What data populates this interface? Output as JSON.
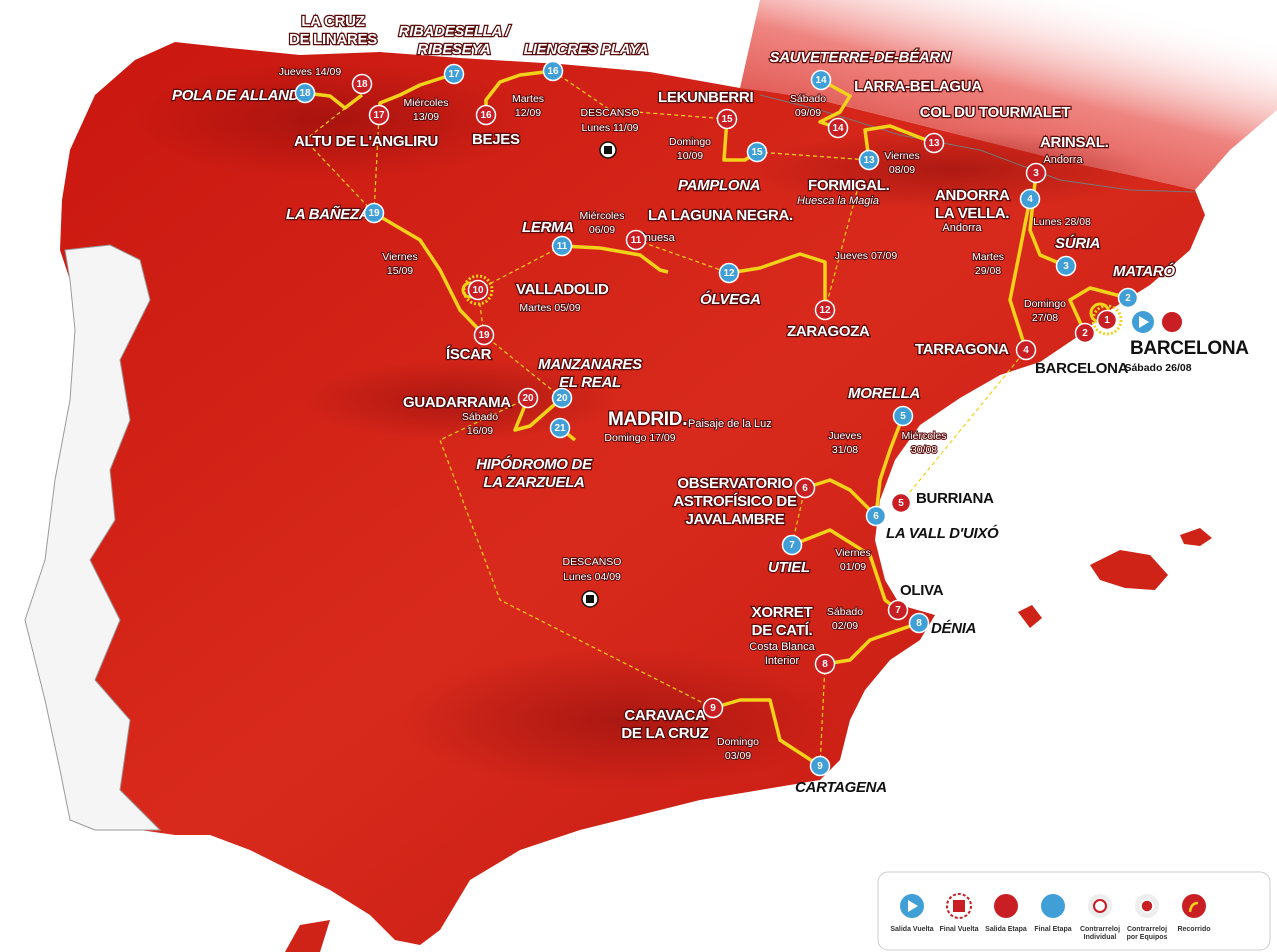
{
  "places": [
    {
      "lines": [
        "LA CRUZ",
        "DE LINARES"
      ]
    },
    {
      "lines": [
        "RIBADESELLA /",
        "RIBESEYA"
      ]
    },
    {
      "lines": [
        "LIENCRES PLAYA"
      ]
    },
    {
      "lines": [
        "SAUVETERRE-DE-BÉARN"
      ]
    },
    {
      "lines": [
        "LARRA-BELAGUA"
      ]
    },
    {
      "lines": [
        "COL DU TOURMALET"
      ]
    },
    {
      "lines": [
        "POLA DE ALLANDE"
      ]
    },
    {
      "lines": [
        "LEKUNBERRI"
      ]
    },
    {
      "lines": [
        "ALTU DE L'ANGLIRU"
      ]
    },
    {
      "lines": [
        "BEJES"
      ]
    },
    {
      "lines": [
        "ARINSAL."
      ],
      "notes": [
        "Andorra"
      ]
    },
    {
      "lines": [
        "PAMPLONA"
      ]
    },
    {
      "lines": [
        "FORMIGAL."
      ],
      "notes": [
        "Huesca la Magia"
      ]
    },
    {
      "lines": [
        "ANDORRA",
        "LA VELLA."
      ],
      "notes": [
        "Andorra"
      ]
    },
    {
      "lines": [
        "LA BAÑEZA"
      ]
    },
    {
      "lines": [
        "LERMA"
      ]
    },
    {
      "lines": [
        "LA LAGUNA NEGRA."
      ],
      "notes": [
        "Vinuesa"
      ]
    },
    {
      "lines": [
        "SÚRIA"
      ]
    },
    {
      "lines": [
        "VALLADOLID"
      ]
    },
    {
      "lines": [
        "ÓLVEGA"
      ]
    },
    {
      "lines": [
        "MATARÓ"
      ]
    },
    {
      "lines": [
        "ZARAGOZA"
      ]
    },
    {
      "lines": [
        "TARRAGONA"
      ]
    },
    {
      "lines": [
        "BARCELONA"
      ]
    },
    {
      "lines": [
        "BARCELONA"
      ]
    },
    {
      "lines": [
        "ÍSCAR"
      ]
    },
    {
      "lines": [
        "MANZANARES",
        "EL REAL"
      ]
    },
    {
      "lines": [
        "GUADARRAMA"
      ]
    },
    {
      "lines": [
        "MADRID."
      ],
      "notes": [
        "Paisaje de la Luz"
      ]
    },
    {
      "lines": [
        "MORELLA"
      ]
    },
    {
      "lines": [
        "HIPÓDROMO DE",
        "LA ZARZUELA"
      ]
    },
    {
      "lines": [
        "OBSERVATORIO",
        "ASTROFÍSICO DE",
        "JAVALAMBRE"
      ]
    },
    {
      "lines": [
        "BURRIANA"
      ]
    },
    {
      "lines": [
        "LA VALL D'UIXÓ"
      ]
    },
    {
      "lines": [
        "UTIEL"
      ]
    },
    {
      "lines": [
        "OLIVA"
      ]
    },
    {
      "lines": [
        "XORRET",
        "DE CATÍ."
      ],
      "notes": [
        "Costa Blanca",
        "Interior"
      ]
    },
    {
      "lines": [
        "DÉNIA"
      ]
    },
    {
      "lines": [
        "CARAVACA",
        "DE LA CRUZ"
      ]
    },
    {
      "lines": [
        "CARTAGENA"
      ]
    }
  ],
  "dates": [
    [
      "Jueves 14/09"
    ],
    [
      "Miércoles",
      "13/09"
    ],
    [
      "Martes",
      "12/09"
    ],
    [
      "Domingo",
      "10/09"
    ],
    [
      "Sábado",
      "09/09"
    ],
    [
      "Viernes",
      "08/09"
    ],
    [
      "Lunes 28/08"
    ],
    [
      "Miércoles",
      "06/09"
    ],
    [
      "Jueves 07/09"
    ],
    [
      "Viernes",
      "15/09"
    ],
    [
      "Martes",
      "29/08"
    ],
    [
      "Domingo",
      "27/08"
    ],
    [
      "Martes 05/09"
    ],
    [
      "Sábado 26/08"
    ],
    [
      "Sábado",
      "16/09"
    ],
    [
      "Domingo 17/09"
    ],
    [
      "Jueves",
      "31/08"
    ],
    [
      "Miércoles",
      "30/08"
    ],
    [
      "Viernes",
      "01/09"
    ],
    [
      "Sábado",
      "02/09"
    ],
    [
      "Domingo",
      "03/09"
    ]
  ],
  "rest_days": [
    {
      "title": "DESCANSO",
      "date": "Lunes 11/09"
    },
    {
      "title": "DESCANSO",
      "date": "Lunes 04/09"
    }
  ],
  "stages": [
    {
      "label": "18",
      "kind": "finish"
    },
    {
      "label": "18",
      "kind": "start"
    },
    {
      "label": "17",
      "kind": "start"
    },
    {
      "label": "17",
      "kind": "finish"
    },
    {
      "label": "16",
      "kind": "start"
    },
    {
      "label": "16",
      "kind": "finish"
    },
    {
      "label": "15",
      "kind": "start"
    },
    {
      "label": "15",
      "kind": "finish"
    },
    {
      "label": "14",
      "kind": "finish"
    },
    {
      "label": "14",
      "kind": "start"
    },
    {
      "label": "13",
      "kind": "start"
    },
    {
      "label": "13",
      "kind": "finish"
    },
    {
      "label": "3",
      "kind": "start"
    },
    {
      "label": "4",
      "kind": "finish"
    },
    {
      "label": "3",
      "kind": "finish"
    },
    {
      "label": "2",
      "kind": "finish"
    },
    {
      "label": "1",
      "kind": "tt"
    },
    {
      "label": "2",
      "kind": "start"
    },
    {
      "label": "4",
      "kind": "start"
    },
    {
      "label": "11",
      "kind": "finish"
    },
    {
      "label": "11",
      "kind": "start"
    },
    {
      "label": "12",
      "kind": "finish"
    },
    {
      "label": "12",
      "kind": "start"
    },
    {
      "label": "10",
      "kind": "tt"
    },
    {
      "label": "19",
      "kind": "finish"
    },
    {
      "label": "19",
      "kind": "start"
    },
    {
      "label": "20",
      "kind": "start"
    },
    {
      "label": "20",
      "kind": "finish"
    },
    {
      "label": "21",
      "kind": "finish"
    },
    {
      "label": "5",
      "kind": "finish"
    },
    {
      "label": "5",
      "kind": "start"
    },
    {
      "label": "6",
      "kind": "start"
    },
    {
      "label": "6",
      "kind": "finish"
    },
    {
      "label": "7",
      "kind": "finish"
    },
    {
      "label": "7",
      "kind": "start"
    },
    {
      "label": "8",
      "kind": "finish"
    },
    {
      "label": "8",
      "kind": "start"
    },
    {
      "label": "9",
      "kind": "start"
    },
    {
      "label": "9",
      "kind": "finish"
    }
  ],
  "legend": [
    {
      "lines": [
        "Salida Vuelta"
      ]
    },
    {
      "lines": [
        "Final Vuelta"
      ]
    },
    {
      "lines": [
        "Salida Etapa"
      ]
    },
    {
      "lines": [
        "Final Etapa"
      ]
    },
    {
      "lines": [
        "Contrarreloj",
        "Individual"
      ]
    },
    {
      "lines": [
        "Contrarreloj",
        "por Equipos"
      ]
    },
    {
      "lines": [
        "Recorrido"
      ]
    }
  ]
}
